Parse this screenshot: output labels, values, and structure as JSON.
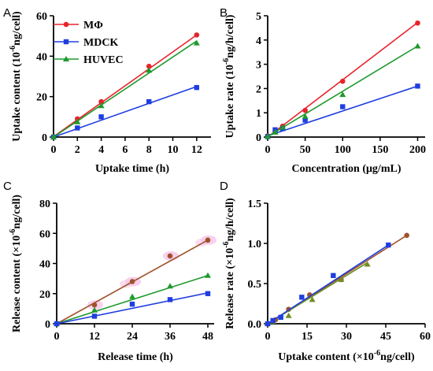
{
  "figure": {
    "panel_letters": [
      "A",
      "B",
      "C",
      "D"
    ]
  },
  "colors": {
    "MPhi": "#e8232b",
    "MDCK": "#1f3ee0",
    "HUVEC": "#1e9a2e",
    "C_brown": "#a1522a",
    "C_green": "#1e9a2e",
    "C_blue": "#1f3ee0",
    "C_highlight": "#f5c6e8",
    "D_brown": "#a1522a",
    "D_olive": "#6f8e22",
    "D_blue": "#1f3ee0"
  },
  "chart_data": [
    {
      "type": "scatter",
      "panel": "A",
      "xlabel": "Uptake time (h)",
      "ylabel_parts": [
        "Uptake content (10",
        "-6",
        "ng/cell)"
      ],
      "xlim": [
        0,
        13.2
      ],
      "ylim": [
        0,
        60
      ],
      "xticks": [
        0,
        2,
        4,
        6,
        8,
        10,
        12
      ],
      "yticks": [
        0,
        20,
        40,
        60
      ],
      "legend": {
        "position": "top-left",
        "entries": [
          "MΦ",
          "MDCK",
          "HUVEC"
        ]
      },
      "series": [
        {
          "name": "MΦ",
          "marker": "circle",
          "color_key": "MPhi",
          "x": [
            0,
            2,
            4,
            8,
            12
          ],
          "y": [
            0,
            9,
            17.5,
            35,
            50.5
          ],
          "fit": [
            [
              0,
              0.2
            ],
            [
              12,
              50.5
            ]
          ]
        },
        {
          "name": "MDCK",
          "marker": "square",
          "color_key": "MDCK",
          "x": [
            0,
            2,
            4,
            8,
            12
          ],
          "y": [
            0,
            4.5,
            10,
            17.5,
            24.5
          ],
          "fit": [
            [
              0,
              0
            ],
            [
              12,
              25
            ]
          ]
        },
        {
          "name": "HUVEC",
          "marker": "triangle",
          "color_key": "HUVEC",
          "x": [
            0,
            2,
            4,
            8,
            12
          ],
          "y": [
            0,
            7.5,
            15.5,
            33,
            46.5
          ],
          "fit": [
            [
              0,
              0
            ],
            [
              12,
              47.5
            ]
          ]
        }
      ]
    },
    {
      "type": "scatter",
      "panel": "B",
      "xlabel": "Concentration (μg/mL)",
      "ylabel_parts": [
        "Uptake rate (10",
        "-6",
        "ng/h/cell)"
      ],
      "xlim": [
        0,
        210
      ],
      "ylim": [
        0,
        5
      ],
      "xticks": [
        0,
        50,
        100,
        150,
        200
      ],
      "yticks": [
        0,
        1,
        2,
        3,
        4,
        5
      ],
      "series": [
        {
          "color_key": "MPhi",
          "marker": "circle",
          "x": [
            0,
            10,
            20,
            50,
            100,
            200
          ],
          "y": [
            0.05,
            0.25,
            0.45,
            1.1,
            2.3,
            4.7
          ],
          "fit": [
            [
              0,
              0
            ],
            [
              200,
              4.72
            ]
          ]
        },
        {
          "color_key": "MDCK",
          "marker": "square",
          "x": [
            0,
            10,
            20,
            50,
            100,
            200
          ],
          "y": [
            0.02,
            0.3,
            0.35,
            0.7,
            1.25,
            2.1
          ],
          "fit": [
            [
              0,
              0.05
            ],
            [
              200,
              2.1
            ]
          ]
        },
        {
          "color_key": "HUVEC",
          "marker": "triangle",
          "x": [
            0,
            10,
            20,
            50,
            100,
            200
          ],
          "y": [
            0.03,
            0.2,
            0.4,
            0.85,
            1.75,
            3.75
          ],
          "fit": [
            [
              0,
              0.02
            ],
            [
              200,
              3.75
            ]
          ]
        }
      ]
    },
    {
      "type": "scatter",
      "panel": "C",
      "xlabel": "Release time (h)",
      "ylabel_parts": [
        "Release content (×10",
        "-6",
        "ng/cell)"
      ],
      "xlim": [
        0,
        50
      ],
      "ylim": [
        0,
        80
      ],
      "xticks": [
        0,
        12,
        24,
        36,
        48
      ],
      "yticks": [
        0,
        20,
        40,
        60,
        80
      ],
      "series": [
        {
          "color_key": "C_brown",
          "marker": "circle",
          "x": [
            0,
            12,
            24,
            36,
            48
          ],
          "y": [
            0,
            12.5,
            28,
            45,
            55.5
          ],
          "fit": [
            [
              0,
              0
            ],
            [
              48,
              55.5
            ]
          ]
        },
        {
          "color_key": "C_green",
          "marker": "triangle",
          "x": [
            0,
            12,
            24,
            36,
            48
          ],
          "y": [
            0,
            9,
            18,
            25,
            32
          ],
          "fit": [
            [
              0,
              0
            ],
            [
              48,
              32
            ]
          ]
        },
        {
          "color_key": "C_blue",
          "marker": "square",
          "x": [
            0,
            12,
            24,
            36,
            48
          ],
          "y": [
            0,
            5,
            13,
            16,
            20
          ],
          "fit": [
            [
              0,
              0
            ],
            [
              48,
              20.5
            ]
          ]
        }
      ]
    },
    {
      "type": "scatter",
      "panel": "D",
      "xlabel": "Uptake content (×10",
      "xlabel_parts": [
        "Uptake content (×10",
        "-6",
        "ng/cell)"
      ],
      "ylabel_parts": [
        "Release rate (×10",
        "-6",
        "ng/h/cell)"
      ],
      "xlim": [
        0,
        60
      ],
      "ylim": [
        0,
        1.5
      ],
      "xticks": [
        0,
        15,
        30,
        45,
        60
      ],
      "yticks": [
        0,
        0.5,
        1.0,
        1.5
      ],
      "ytick_labels": [
        "0.0",
        "0.5",
        "1.0",
        "1.5"
      ],
      "series": [
        {
          "color_key": "D_brown",
          "marker": "circle",
          "x": [
            0,
            3,
            8,
            16,
            28,
            53
          ],
          "y": [
            0,
            0.05,
            0.18,
            0.36,
            0.55,
            1.1
          ],
          "fit": [
            [
              0,
              0
            ],
            [
              53,
              1.1
            ]
          ]
        },
        {
          "color_key": "D_olive",
          "marker": "triangle",
          "x": [
            0,
            2,
            8,
            17,
            28,
            38
          ],
          "y": [
            0,
            0.03,
            0.1,
            0.3,
            0.55,
            0.74
          ],
          "fit": [
            [
              0,
              0
            ],
            [
              38,
              0.76
            ]
          ]
        },
        {
          "color_key": "D_blue",
          "marker": "square",
          "x": [
            0,
            2,
            5,
            13,
            25,
            46
          ],
          "y": [
            0,
            0.04,
            0.08,
            0.33,
            0.6,
            0.98
          ],
          "fit": [
            [
              0,
              0
            ],
            [
              46,
              0.98
            ]
          ]
        }
      ]
    }
  ]
}
